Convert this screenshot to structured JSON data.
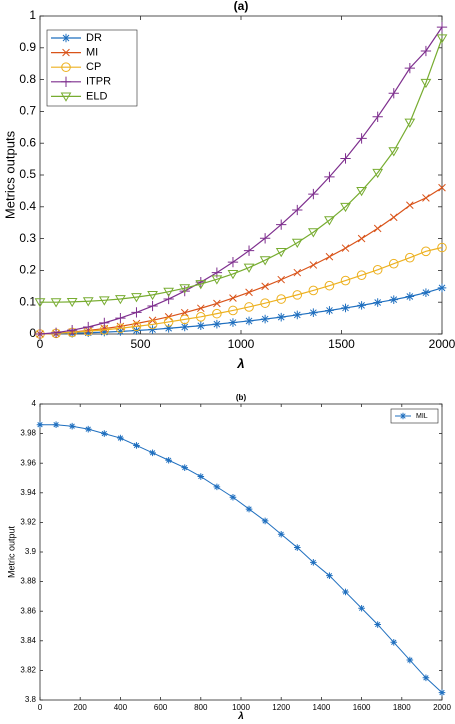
{
  "chart_data": [
    {
      "type": "line",
      "title": "(a)",
      "xlabel": "λ",
      "ylabel": "Metrics outputs",
      "xlim": [
        0,
        2000
      ],
      "ylim": [
        0,
        1
      ],
      "xticks": [
        0,
        500,
        1000,
        1500,
        2000
      ],
      "xtick_labels": [
        "0",
        "500",
        "1000",
        "1500",
        "2000"
      ],
      "yticks": [
        0,
        0.1,
        0.2,
        0.3,
        0.4,
        0.5,
        0.6,
        0.7,
        0.8,
        0.9,
        1
      ],
      "ytick_labels": [
        "0",
        "0.1",
        "0.2",
        "0.3",
        "0.4",
        "0.5",
        "0.6",
        "0.7",
        "0.8",
        "0.9",
        "1"
      ],
      "grid": false,
      "legend_position": "top-left",
      "x": [
        0,
        80,
        160,
        240,
        320,
        400,
        480,
        560,
        640,
        720,
        800,
        880,
        960,
        1040,
        1120,
        1200,
        1280,
        1360,
        1440,
        1520,
        1600,
        1680,
        1760,
        1840,
        1920,
        2000
      ],
      "series": [
        {
          "name": "DR",
          "color": "#1f6fbf",
          "marker": "asterisk",
          "values": [
            0.0,
            0.001,
            0.002,
            0.004,
            0.006,
            0.008,
            0.011,
            0.014,
            0.018,
            0.022,
            0.026,
            0.031,
            0.036,
            0.041,
            0.047,
            0.053,
            0.06,
            0.067,
            0.074,
            0.082,
            0.09,
            0.099,
            0.108,
            0.118,
            0.13,
            0.145
          ]
        },
        {
          "name": "MI",
          "color": "#d95319",
          "marker": "x",
          "values": [
            0.0,
            0.002,
            0.006,
            0.011,
            0.017,
            0.024,
            0.033,
            0.043,
            0.054,
            0.067,
            0.081,
            0.096,
            0.113,
            0.131,
            0.15,
            0.171,
            0.193,
            0.217,
            0.243,
            0.27,
            0.3,
            0.332,
            0.367,
            0.405,
            0.428,
            0.46
          ]
        },
        {
          "name": "CP",
          "color": "#edb120",
          "marker": "circle",
          "values": [
            0.0,
            0.002,
            0.005,
            0.009,
            0.013,
            0.018,
            0.024,
            0.03,
            0.038,
            0.046,
            0.054,
            0.064,
            0.074,
            0.085,
            0.097,
            0.11,
            0.123,
            0.137,
            0.152,
            0.168,
            0.185,
            0.202,
            0.221,
            0.24,
            0.26,
            0.272
          ]
        },
        {
          "name": "ITPR",
          "color": "#7e2f8e",
          "marker": "plus",
          "values": [
            0.0,
            0.004,
            0.012,
            0.022,
            0.035,
            0.05,
            0.068,
            0.088,
            0.11,
            0.135,
            0.163,
            0.193,
            0.226,
            0.262,
            0.301,
            0.344,
            0.39,
            0.44,
            0.494,
            0.552,
            0.615,
            0.683,
            0.757,
            0.836,
            0.89,
            0.965
          ]
        },
        {
          "name": "ELD",
          "color": "#77ac30",
          "marker": "triangle-down",
          "values": [
            0.1,
            0.1,
            0.101,
            0.103,
            0.106,
            0.11,
            0.116,
            0.123,
            0.133,
            0.144,
            0.157,
            0.172,
            0.189,
            0.209,
            0.232,
            0.258,
            0.287,
            0.32,
            0.358,
            0.4,
            0.45,
            0.507,
            0.575,
            0.665,
            0.79,
            0.93
          ]
        }
      ]
    },
    {
      "type": "line",
      "title": "(b)",
      "xlabel": "λ",
      "ylabel": "Metric output",
      "xlim": [
        0,
        2000
      ],
      "ylim": [
        3.8,
        4
      ],
      "xticks": [
        0,
        200,
        400,
        600,
        800,
        1000,
        1200,
        1400,
        1600,
        1800,
        2000
      ],
      "xtick_labels": [
        "0",
        "200",
        "400",
        "600",
        "800",
        "1000",
        "1200",
        "1400",
        "1600",
        "1800",
        "2000"
      ],
      "yticks": [
        3.8,
        3.82,
        3.84,
        3.86,
        3.88,
        3.9,
        3.92,
        3.94,
        3.96,
        3.98,
        4
      ],
      "ytick_labels": [
        "3.8",
        "3.82",
        "3.84",
        "3.86",
        "3.88",
        "3.9",
        "3.92",
        "3.94",
        "3.96",
        "3.98",
        "4"
      ],
      "grid": false,
      "legend_position": "top-right",
      "x": [
        0,
        80,
        160,
        240,
        320,
        400,
        480,
        560,
        640,
        720,
        800,
        880,
        960,
        1040,
        1120,
        1200,
        1280,
        1360,
        1440,
        1520,
        1600,
        1680,
        1760,
        1840,
        1920,
        2000
      ],
      "series": [
        {
          "name": "MIL",
          "color": "#1f6fbf",
          "marker": "asterisk",
          "values": [
            3.986,
            3.986,
            3.985,
            3.983,
            3.98,
            3.977,
            3.972,
            3.967,
            3.962,
            3.957,
            3.951,
            3.944,
            3.937,
            3.929,
            3.921,
            3.912,
            3.903,
            3.893,
            3.884,
            3.873,
            3.862,
            3.851,
            3.839,
            3.827,
            3.815,
            3.805
          ]
        }
      ]
    }
  ]
}
